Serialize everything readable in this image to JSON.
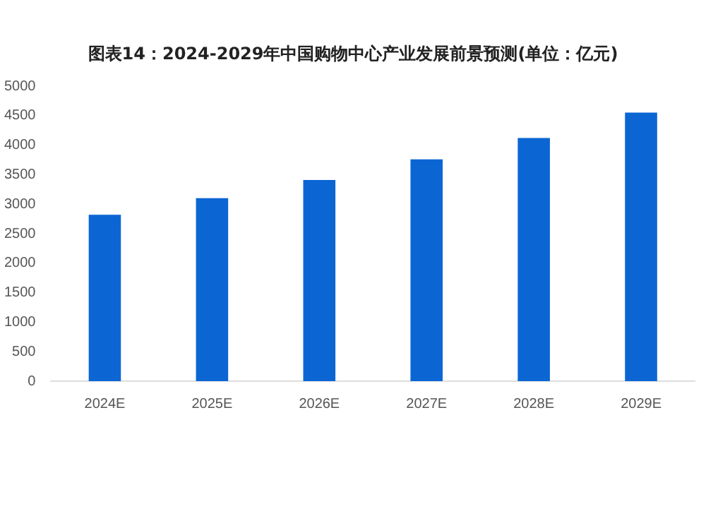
{
  "chart_data": {
    "type": "bar",
    "title": "图表14：2024-2029年中国购物中心产业发展前景预测(单位：亿元)",
    "categories": [
      "2024E",
      "2025E",
      "2026E",
      "2027E",
      "2028E",
      "2029E"
    ],
    "values": [
      2820,
      3100,
      3410,
      3760,
      4120,
      4550
    ],
    "color": "#0b66d4",
    "ylim": [
      0,
      5000
    ],
    "yticks": [
      0,
      500,
      1000,
      1500,
      2000,
      2500,
      3000,
      3500,
      4000,
      4500,
      5000
    ],
    "grid": false,
    "legend": false
  }
}
